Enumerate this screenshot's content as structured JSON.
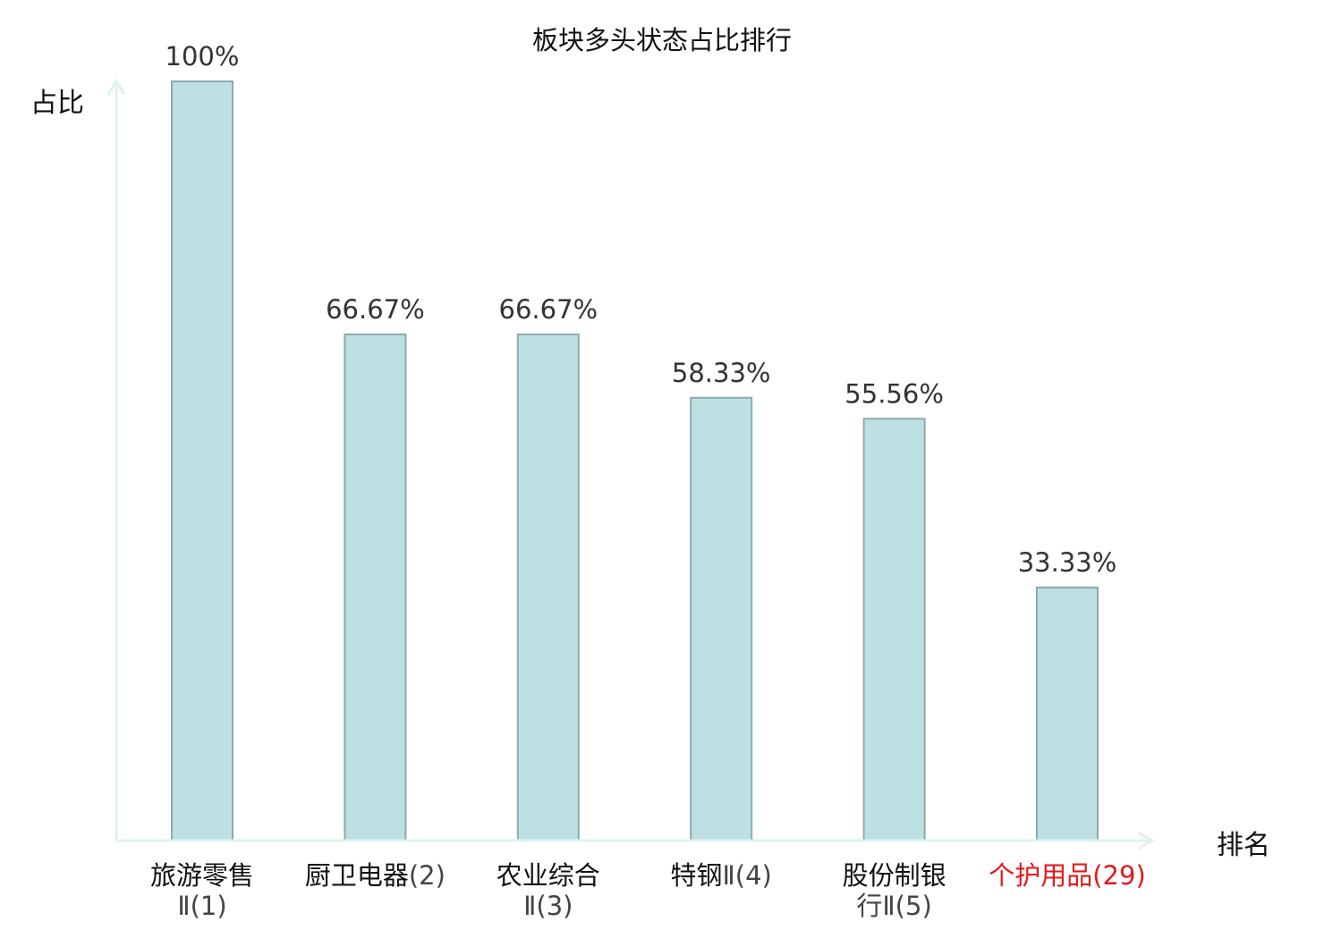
{
  "chart_data": {
    "type": "bar",
    "title": "板块多头状态占比排行",
    "ylabel": "占比",
    "xlabel": "排名",
    "ylim": [
      0,
      100
    ],
    "grid": false,
    "categories": [
      {
        "main": "旅游零售",
        "sub": "Ⅱ(1)",
        "highlight": false
      },
      {
        "main": "厨卫电器",
        "sub": "(2)",
        "highlight": false
      },
      {
        "main": "农业综合",
        "sub": "Ⅱ(3)",
        "highlight": false
      },
      {
        "main": "特钢",
        "sub": "Ⅱ(4)",
        "highlight": false
      },
      {
        "main": "股份制银",
        "sub": "行Ⅱ(5)",
        "highlight": false
      },
      {
        "main": "个护用品",
        "sub": "(29)",
        "highlight": true
      }
    ],
    "values": [
      100,
      66.67,
      66.67,
      58.33,
      55.56,
      33.33
    ],
    "value_labels": [
      "100%",
      "66.67%",
      "66.67%",
      "58.33%",
      "55.56%",
      "33.33%"
    ],
    "colors": {
      "bar_fill": "#bde0e3",
      "bar_stroke": "#8fa9ab",
      "axis": "#dff2ef",
      "label": "#333333",
      "highlight": "#e3191c"
    }
  }
}
